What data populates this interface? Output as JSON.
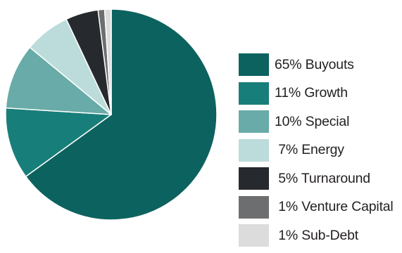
{
  "chart_data": {
    "type": "pie",
    "slices": [
      {
        "label": "Buyouts",
        "value": 65,
        "legend_text": "65% Buyouts",
        "color": "#0c625f"
      },
      {
        "label": "Growth",
        "value": 11,
        "legend_text": "11% Growth",
        "color": "#187e7a"
      },
      {
        "label": "Special",
        "value": 10,
        "legend_text": "10% Special",
        "color": "#68aba8"
      },
      {
        "label": "Energy",
        "value": 7,
        "legend_text": " 7% Energy",
        "color": "#bcdcdb"
      },
      {
        "label": "Turnaround",
        "value": 5,
        "legend_text": " 5% Turnaround",
        "color": "#26292d"
      },
      {
        "label": "Venture Capital",
        "value": 1,
        "legend_text": " 1% Venture Capital",
        "color": "#6d6e70"
      },
      {
        "label": "Sub-Debt",
        "value": 1,
        "legend_text": " 1% Sub-Debt",
        "color": "#dcdcdc"
      }
    ],
    "legend_position": "right"
  }
}
